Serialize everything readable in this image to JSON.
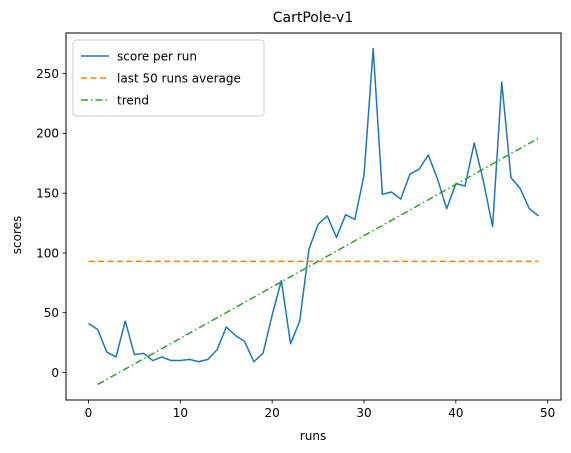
{
  "chart_data": {
    "type": "line",
    "title": "CartPole-v1",
    "xlabel": "runs",
    "ylabel": "scores",
    "xlim": [
      -2.45,
      51.45
    ],
    "ylim": [
      -23,
      284
    ],
    "xticks": [
      0,
      10,
      20,
      30,
      40,
      50
    ],
    "yticks": [
      0,
      50,
      100,
      150,
      200,
      250
    ],
    "grid": false,
    "legend_position": "top-left",
    "series": [
      {
        "name": "score per run",
        "style": "solid",
        "color": "#1f77b4",
        "x": [
          0,
          1,
          2,
          3,
          4,
          5,
          6,
          7,
          8,
          9,
          10,
          11,
          12,
          13,
          14,
          15,
          16,
          17,
          18,
          19,
          20,
          21,
          22,
          23,
          24,
          25,
          26,
          27,
          28,
          29,
          30,
          31,
          32,
          33,
          34,
          35,
          36,
          37,
          38,
          39,
          40,
          41,
          42,
          43,
          44,
          45,
          46,
          47,
          48,
          49
        ],
        "y": [
          41,
          36,
          17,
          13,
          43,
          15,
          16,
          10,
          13,
          10,
          10,
          11,
          9,
          11,
          19,
          38,
          31,
          26,
          9,
          16,
          48,
          77,
          24,
          43,
          103,
          124,
          131,
          113,
          132,
          128,
          165,
          271,
          149,
          151,
          145,
          166,
          170,
          182,
          162,
          137,
          158,
          156,
          192,
          160,
          122,
          243,
          163,
          154,
          137,
          131
        ]
      },
      {
        "name": "last 50 runs average",
        "style": "dashed",
        "color": "#ff7f0e",
        "x": [
          0,
          49
        ],
        "y": [
          93,
          93
        ]
      },
      {
        "name": "trend",
        "style": "dashdot",
        "color": "#2ca02c",
        "x": [
          1,
          49
        ],
        "y": [
          -10,
          196
        ]
      }
    ]
  }
}
